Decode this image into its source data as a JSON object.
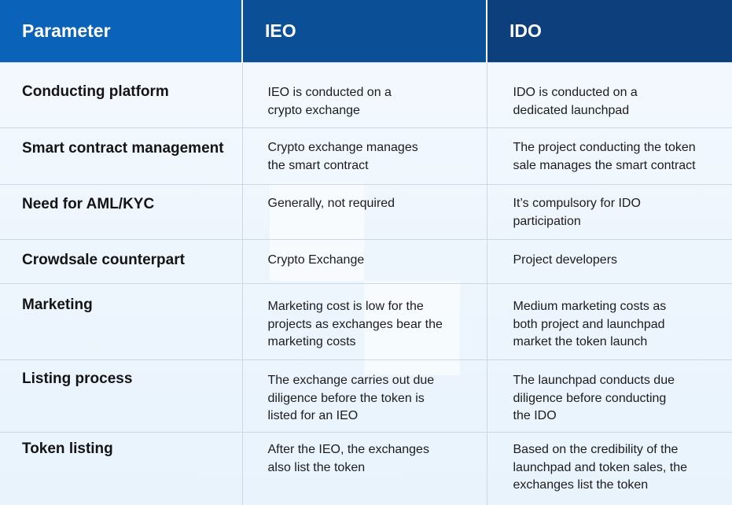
{
  "header": {
    "col1": "Parameter",
    "col2": "IEO",
    "col3": "IDO"
  },
  "rows": [
    {
      "parameter": "Conducting platform",
      "ieo": [
        "IEO is conducted on a",
        "crypto exchange"
      ],
      "ido": [
        "IDO is conducted on a",
        "dedicated launchpad"
      ]
    },
    {
      "parameter": "Smart contract management",
      "ieo": [
        "Crypto exchange manages",
        "the smart contract"
      ],
      "ido": [
        "The project conducting the token",
        "sale manages the smart contract"
      ]
    },
    {
      "parameter": "Need for AML/KYC",
      "ieo": [
        "Generally, not required"
      ],
      "ido": [
        "It’s compulsory for IDO",
        "participation"
      ]
    },
    {
      "parameter": "Crowdsale counterpart",
      "ieo": [
        "Crypto Exchange"
      ],
      "ido": [
        "Project developers"
      ]
    },
    {
      "parameter": "Marketing",
      "ieo": [
        "Marketing cost is low for the",
        "projects as exchanges bear the",
        "marketing costs"
      ],
      "ido": [
        "Medium marketing costs as",
        "both project and launchpad",
        "market the token launch"
      ]
    },
    {
      "parameter": "Listing process",
      "ieo": [
        "The exchange carries out due",
        "diligence before the token is",
        "listed for an IEO"
      ],
      "ido": [
        "The launchpad conducts due",
        "diligence before conducting",
        "the IDO"
      ]
    },
    {
      "parameter": "Token listing",
      "ieo": [
        "After the IEO, the exchanges",
        "also list the token"
      ],
      "ido": [
        "Based on the credibility of the",
        "launchpad and token sales, the",
        "exchanges list the token"
      ]
    }
  ],
  "colors": {
    "header_param": "#0a63b8",
    "header_ieo": "#0b4f96",
    "header_ido": "#0d3f7c",
    "background": "#eef6fd",
    "divider": "#ccd8e3"
  }
}
